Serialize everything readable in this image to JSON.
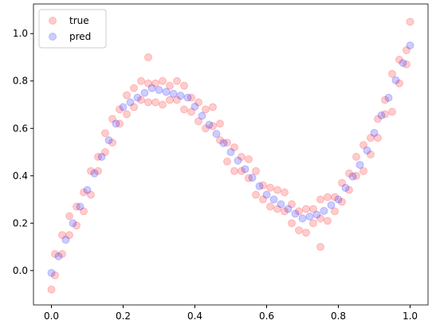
{
  "chart_data": {
    "type": "scatter",
    "xlim": [
      -0.05,
      1.05
    ],
    "ylim": [
      -0.145,
      1.125
    ],
    "xticks": [
      {
        "value": 0,
        "label": "0.0"
      },
      {
        "value": 0.2,
        "label": "0.2"
      },
      {
        "value": 0.4,
        "label": "0.4"
      },
      {
        "value": 0.6,
        "label": "0.6"
      },
      {
        "value": 0.8,
        "label": "0.8"
      },
      {
        "value": 1,
        "label": "1.0"
      }
    ],
    "yticks": [
      {
        "value": 0,
        "label": "0.0"
      },
      {
        "value": 0.2,
        "label": "0.2"
      },
      {
        "value": 0.4,
        "label": "0.4"
      },
      {
        "value": 0.6,
        "label": "0.6"
      },
      {
        "value": 0.8,
        "label": "0.8"
      },
      {
        "value": 1,
        "label": "1.0"
      }
    ],
    "legend": "upper left",
    "series": [
      {
        "name": "true",
        "color": "#ff0000",
        "x": [
          0.01,
          0.03,
          0.05,
          0.07,
          0.09,
          0.11,
          0.13,
          0.15,
          0.17,
          0.19,
          0.21,
          0.23,
          0.25,
          0.27,
          0.29,
          0.31,
          0.33,
          0.35,
          0.37,
          0.39,
          0.41,
          0.43,
          0.45,
          0.47,
          0.49,
          0.51,
          0.53,
          0.55,
          0.57,
          0.59,
          0.61,
          0.63,
          0.65,
          0.67,
          0.69,
          0.71,
          0.73,
          0.75,
          0.77,
          0.79,
          0.81,
          0.83,
          0.85,
          0.87,
          0.89,
          0.91,
          0.93,
          0.95,
          0.97,
          0.99,
          0.01,
          0.03,
          0.05,
          0.07,
          0.09,
          0.11,
          0.13,
          0.15,
          0.17,
          0.19,
          0.21,
          0.23,
          0.25,
          0.27,
          0.29,
          0.31,
          0.33,
          0.35,
          0.37,
          0.39,
          0.41,
          0.43,
          0.45,
          0.47,
          0.49,
          0.51,
          0.53,
          0.55,
          0.57,
          0.59,
          0.61,
          0.63,
          0.65,
          0.67,
          0.69,
          0.71,
          0.73,
          0.75,
          0.77,
          0.79,
          0.81,
          0.83,
          0.85,
          0.87,
          0.89,
          0.91,
          0.93,
          0.95,
          0.97,
          0.99,
          1.0,
          0.0,
          0.27,
          0.75
        ],
        "values": [
          0.07,
          0.07,
          0.23,
          0.19,
          0.33,
          0.32,
          0.48,
          0.5,
          0.64,
          0.62,
          0.74,
          0.69,
          0.8,
          0.71,
          0.79,
          0.7,
          0.78,
          0.72,
          0.78,
          0.67,
          0.71,
          0.6,
          0.69,
          0.55,
          0.54,
          0.42,
          0.48,
          0.39,
          0.42,
          0.3,
          0.35,
          0.26,
          0.33,
          0.2,
          0.25,
          0.16,
          0.26,
          0.22,
          0.31,
          0.25,
          0.37,
          0.34,
          0.48,
          0.42,
          0.56,
          0.56,
          0.72,
          0.67,
          0.89,
          0.87,
          -0.02,
          0.15,
          0.15,
          0.27,
          0.25,
          0.42,
          0.42,
          0.58,
          0.54,
          0.68,
          0.66,
          0.77,
          0.72,
          0.79,
          0.71,
          0.8,
          0.72,
          0.8,
          0.68,
          0.73,
          0.63,
          0.68,
          0.61,
          0.62,
          0.46,
          0.52,
          0.42,
          0.47,
          0.32,
          0.36,
          0.27,
          0.34,
          0.25,
          0.28,
          0.17,
          0.26,
          0.2,
          0.3,
          0.21,
          0.31,
          0.29,
          0.41,
          0.4,
          0.53,
          0.49,
          0.64,
          0.66,
          0.83,
          0.79,
          0.93,
          1.05,
          -0.08,
          0.9,
          0.1
        ]
      },
      {
        "name": "pred",
        "color": "#0000ff",
        "x": [
          0,
          0.02,
          0.04,
          0.06,
          0.08,
          0.1,
          0.12,
          0.14,
          0.16,
          0.18,
          0.2,
          0.22,
          0.24,
          0.26,
          0.28,
          0.3,
          0.32,
          0.34,
          0.36,
          0.38,
          0.4,
          0.42,
          0.44,
          0.46,
          0.48,
          0.5,
          0.52,
          0.54,
          0.56,
          0.58,
          0.6,
          0.62,
          0.64,
          0.66,
          0.68,
          0.7,
          0.72,
          0.74,
          0.76,
          0.78,
          0.8,
          0.82,
          0.84,
          0.86,
          0.88,
          0.9,
          0.92,
          0.94,
          0.96,
          0.98,
          1.0
        ],
        "values": [
          -0.01,
          0.06,
          0.13,
          0.2,
          0.27,
          0.34,
          0.41,
          0.48,
          0.55,
          0.62,
          0.69,
          0.71,
          0.73,
          0.75,
          0.77,
          0.762,
          0.754,
          0.746,
          0.738,
          0.73,
          0.692,
          0.653,
          0.615,
          0.577,
          0.538,
          0.5,
          0.464,
          0.428,
          0.392,
          0.356,
          0.32,
          0.3,
          0.28,
          0.26,
          0.24,
          0.22,
          0.228,
          0.236,
          0.252,
          0.276,
          0.3,
          0.349,
          0.397,
          0.446,
          0.507,
          0.581,
          0.655,
          0.729,
          0.803,
          0.876,
          0.95
        ]
      }
    ]
  }
}
